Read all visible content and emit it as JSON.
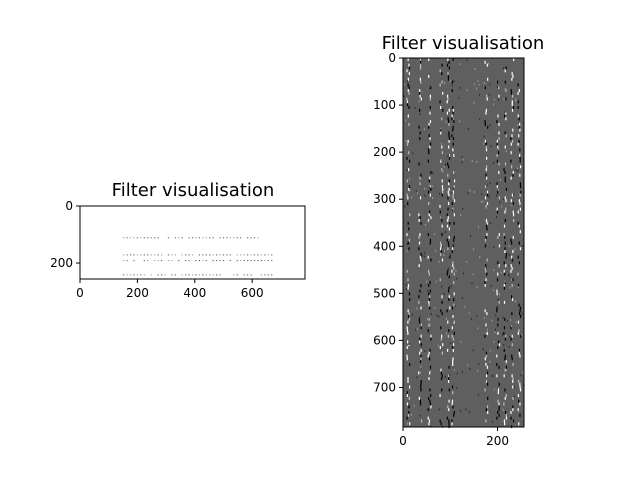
{
  "chart_data": [
    {
      "type": "heatmap",
      "title": "Filter visualisation",
      "xlabel": "",
      "ylabel": "",
      "x_range": [
        0,
        784
      ],
      "y_range": [
        256,
        0
      ],
      "xticks": [
        0,
        200,
        400,
        600
      ],
      "yticks": [
        0,
        200
      ],
      "colormap": "gray",
      "background_level": "white",
      "description_of_marks": "sparse thin dark dashed rows near y≈110, 170, 190, 240 spanning x≈150–670"
    },
    {
      "type": "heatmap",
      "title": "Filter visualisation",
      "xlabel": "",
      "ylabel": "",
      "x_range": [
        0,
        256
      ],
      "y_range": [
        784,
        0
      ],
      "xticks": [
        0,
        200
      ],
      "yticks": [
        0,
        100,
        200,
        300,
        400,
        500,
        600,
        700
      ],
      "colormap": "gray",
      "background_level": "mid-gray",
      "dense_columns": [
        10,
        35,
        55,
        80,
        95,
        105,
        175,
        200,
        215,
        230,
        245
      ]
    }
  ]
}
